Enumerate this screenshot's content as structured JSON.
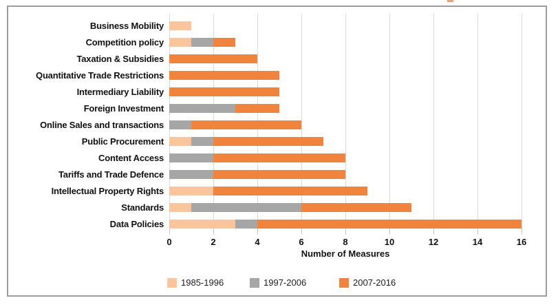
{
  "chart_data": {
    "type": "bar",
    "orientation": "horizontal",
    "stacked": true,
    "title": "",
    "xlabel": "Number of Measures",
    "ylabel": "",
    "xlim": [
      0,
      17.2
    ],
    "x_ticks": [
      0,
      2,
      4,
      6,
      8,
      10,
      12,
      14,
      16
    ],
    "grid": true,
    "legend_position": "bottom",
    "categories": [
      "Business Mobility",
      "Competition policy",
      "Taxation & Subsidies",
      "Quantitative Trade Restrictions",
      "Intermediary Liability",
      "Foreign Investment",
      "Online Sales and transactions",
      "Public Procurement",
      "Content Access",
      "Tariffs and Trade Defence",
      "Intellectual Property Rights",
      "Standards",
      "Data Policies"
    ],
    "series": [
      {
        "name": "1985-1996",
        "color": "#fac49c",
        "pattern": "dots",
        "values": [
          1,
          1,
          0,
          0,
          0,
          0,
          0,
          1,
          0,
          0,
          2,
          1,
          3
        ]
      },
      {
        "name": "1997-2006",
        "color": "#a6a6a6",
        "pattern": "solid",
        "values": [
          0,
          1,
          0,
          0,
          0,
          3,
          1,
          1,
          2,
          2,
          0,
          5,
          1
        ]
      },
      {
        "name": "2007-2016",
        "color": "#f0843c",
        "pattern": "solid",
        "values": [
          0,
          1,
          4,
          5,
          5,
          2,
          5,
          5,
          6,
          6,
          7,
          5,
          12
        ]
      }
    ],
    "totals": [
      1,
      3,
      4,
      5,
      5,
      5,
      6,
      7,
      8,
      8,
      9,
      11,
      16
    ]
  },
  "axis": {
    "title": "Number of Measures"
  },
  "legend": {
    "items": [
      {
        "label": "1985-1996"
      },
      {
        "label": "1997-2006"
      },
      {
        "label": "2007-2016"
      }
    ]
  },
  "colors": {
    "series_1985_1996": "#fac49c",
    "series_1997_2006": "#a6a6a6",
    "series_2007_2016": "#f0843c",
    "gridline": "#d8d8d8",
    "frame_border": "#9d9d9d",
    "text": "#111111"
  }
}
